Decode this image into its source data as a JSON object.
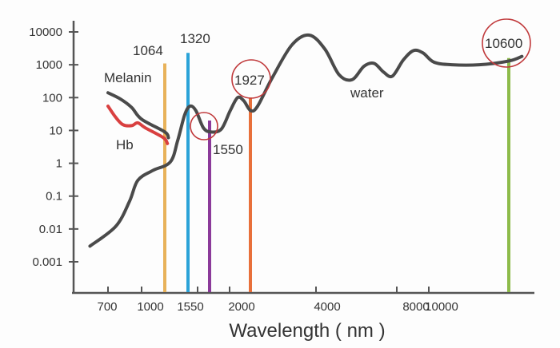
{
  "chart_data": {
    "type": "line",
    "title": "",
    "xlabel": "Wavelength ( nm )",
    "ylabel": "",
    "yscale": "log",
    "ylim": [
      0.001,
      10000
    ],
    "xlim": [
      600,
      12000
    ],
    "grid": false,
    "y_ticks": [
      "10000",
      "1000",
      "100",
      "10",
      "1",
      "0.1",
      "0.01",
      "0.001"
    ],
    "y_tick_values": [
      10000,
      1000,
      100,
      10,
      1,
      0.1,
      0.01,
      0.001
    ],
    "x_ticks": [
      "700",
      "1000",
      "1550",
      "2000",
      "4000",
      "8000",
      "10000"
    ],
    "x_tick_values": [
      700,
      1000,
      1550,
      2000,
      4000,
      8000,
      10000
    ],
    "series": [
      {
        "name": "water",
        "color": "#4a4a4a",
        "points": [
          [
            630,
            0.003
          ],
          [
            760,
            0.012
          ],
          [
            880,
            0.07
          ],
          [
            960,
            0.3
          ],
          [
            1030,
            0.6
          ],
          [
            1120,
            1.1
          ],
          [
            1200,
            5
          ],
          [
            1280,
            30
          ],
          [
            1340,
            55
          ],
          [
            1400,
            40
          ],
          [
            1480,
            12
          ],
          [
            1560,
            9
          ],
          [
            1650,
            11
          ],
          [
            1730,
            40
          ],
          [
            1800,
            100
          ],
          [
            1860,
            80
          ],
          [
            1930,
            40
          ],
          [
            2000,
            55
          ],
          [
            2200,
            400
          ],
          [
            2500,
            4000
          ],
          [
            2800,
            8000
          ],
          [
            3100,
            3000
          ],
          [
            3400,
            500
          ],
          [
            3700,
            350
          ],
          [
            4000,
            900
          ],
          [
            4300,
            1100
          ],
          [
            4600,
            600
          ],
          [
            4900,
            450
          ],
          [
            5300,
            1400
          ],
          [
            5700,
            2700
          ],
          [
            6100,
            2300
          ],
          [
            6600,
            1200
          ],
          [
            7500,
            1000
          ],
          [
            9000,
            1000
          ],
          [
            10600,
            1300
          ],
          [
            11800,
            1800
          ]
        ]
      },
      {
        "name": "Melanin",
        "color": "#4a4a4a",
        "points": [
          [
            700,
            140
          ],
          [
            800,
            90
          ],
          [
            900,
            50
          ],
          [
            1000,
            22
          ],
          [
            1064,
            9
          ],
          [
            1100,
            6
          ]
        ]
      },
      {
        "name": "Hb",
        "color": "#d94040",
        "points": [
          [
            700,
            55
          ],
          [
            760,
            25
          ],
          [
            820,
            15
          ],
          [
            900,
            14
          ],
          [
            960,
            17
          ],
          [
            1010,
            12
          ],
          [
            1060,
            6
          ],
          [
            1090,
            4
          ]
        ]
      }
    ],
    "laser_lines": [
      {
        "label": "1064",
        "wavelength": 1064,
        "top_value": 1100,
        "color": "#e8b25a",
        "circled": false
      },
      {
        "label": "1320",
        "wavelength": 1320,
        "top_value": 2300,
        "color": "#2ba3d8",
        "circled": false
      },
      {
        "label": "1550",
        "wavelength": 1550,
        "top_value": 20,
        "color": "#8b3a9a",
        "circled": true
      },
      {
        "label": "1927",
        "wavelength": 1927,
        "top_value": 100,
        "color": "#e8703a",
        "circled": true
      },
      {
        "label": "10600",
        "wavelength": 10600,
        "top_value": 1600,
        "color": "#8dbb4a",
        "circled": true
      }
    ],
    "annotations": [
      "Melanin",
      "Hb",
      "water",
      "1064",
      "1320",
      "1550",
      "1927",
      "10600"
    ]
  }
}
